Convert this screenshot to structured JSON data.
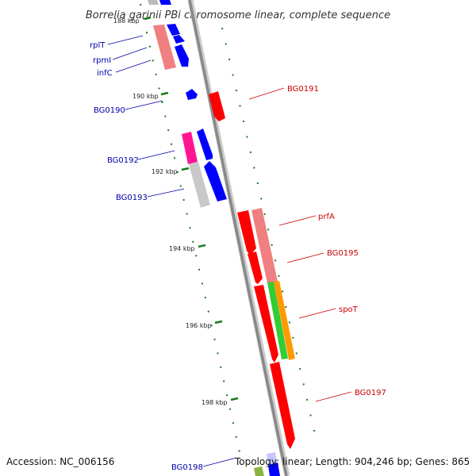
{
  "title": "Borrelia garinii PBi chromosome linear, complete sequence",
  "footer": {
    "accession": "Accession: NC_006156",
    "topology": "Topology: linear; Length: 904,246 bp; Genes: 865"
  },
  "ticks": [
    "188 kbp",
    "190 kbp",
    "192 kbp",
    "194 kbp",
    "196 kbp",
    "198 kbp"
  ],
  "genes_left": [
    "rplT",
    "rpmI",
    "infC",
    "BG0190",
    "BG0192",
    "BG0193",
    "BG0198"
  ],
  "genes_right": [
    "BG0191",
    "prfA",
    "BG0195",
    "spoT",
    "BG0197"
  ],
  "colors": {
    "backbone": "#8c8c8c",
    "forward_cds": "#0000ff",
    "reverse_cds": "#ff0000",
    "rna_pink": "#f08080",
    "magenta": "#ff1493",
    "gray_track": "#c8c8c8",
    "green_feature": "#33cc33",
    "orange_feature": "#ff9900",
    "tick_green": "#1a7a1a",
    "left_label": "#0000aa",
    "right_label": "#cc0000"
  }
}
